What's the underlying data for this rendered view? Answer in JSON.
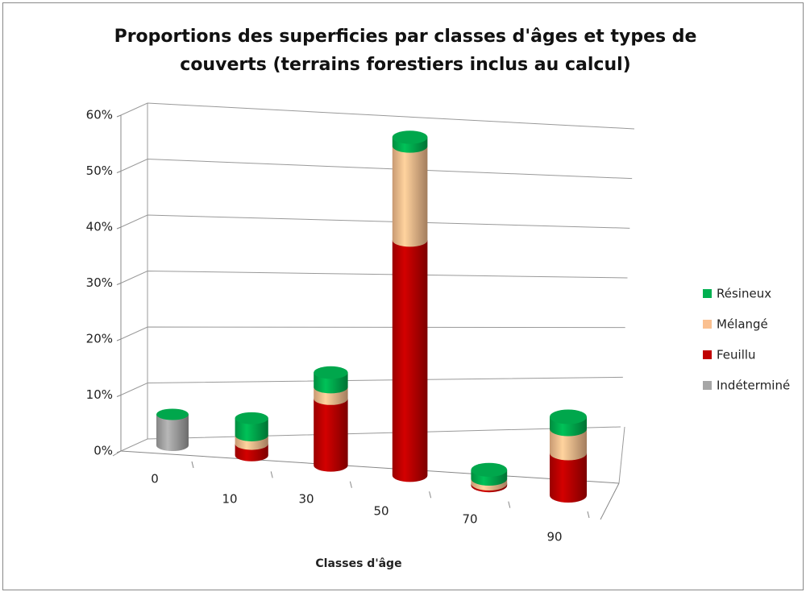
{
  "chart_data": {
    "type": "bar3d_stacked",
    "title": "Proportions des superficies par classes d'âges et types de couverts (terrains forestiers inclus au calcul)",
    "x_label": "Classes d'âge",
    "categories": [
      "0",
      "10",
      "30",
      "50",
      "70",
      "90"
    ],
    "series": [
      {
        "name": "Indéterminé",
        "color": "#a6a6a6",
        "values": [
          5.5,
          0,
          0,
          0,
          0,
          0
        ]
      },
      {
        "name": "Feuillu",
        "color": "#c00000",
        "values": [
          0,
          2,
          11.5,
          40,
          0.3,
          7
        ]
      },
      {
        "name": "Mélangé",
        "color": "#fac090",
        "values": [
          0,
          1.5,
          2,
          16,
          0.8,
          4
        ]
      },
      {
        "name": "Résineux",
        "color": "#00b050",
        "values": [
          0,
          3,
          2.5,
          1.5,
          1.5,
          2
        ]
      }
    ],
    "ylim": [
      0,
      60
    ],
    "yticks": [
      {
        "value": 0,
        "label": "0%"
      },
      {
        "value": 10,
        "label": "10%"
      },
      {
        "value": 20,
        "label": "20%"
      },
      {
        "value": 30,
        "label": "30%"
      },
      {
        "value": 40,
        "label": "40%"
      },
      {
        "value": 50,
        "label": "50%"
      },
      {
        "value": 60,
        "label": "60%"
      }
    ],
    "grid": true,
    "legend": "right"
  }
}
